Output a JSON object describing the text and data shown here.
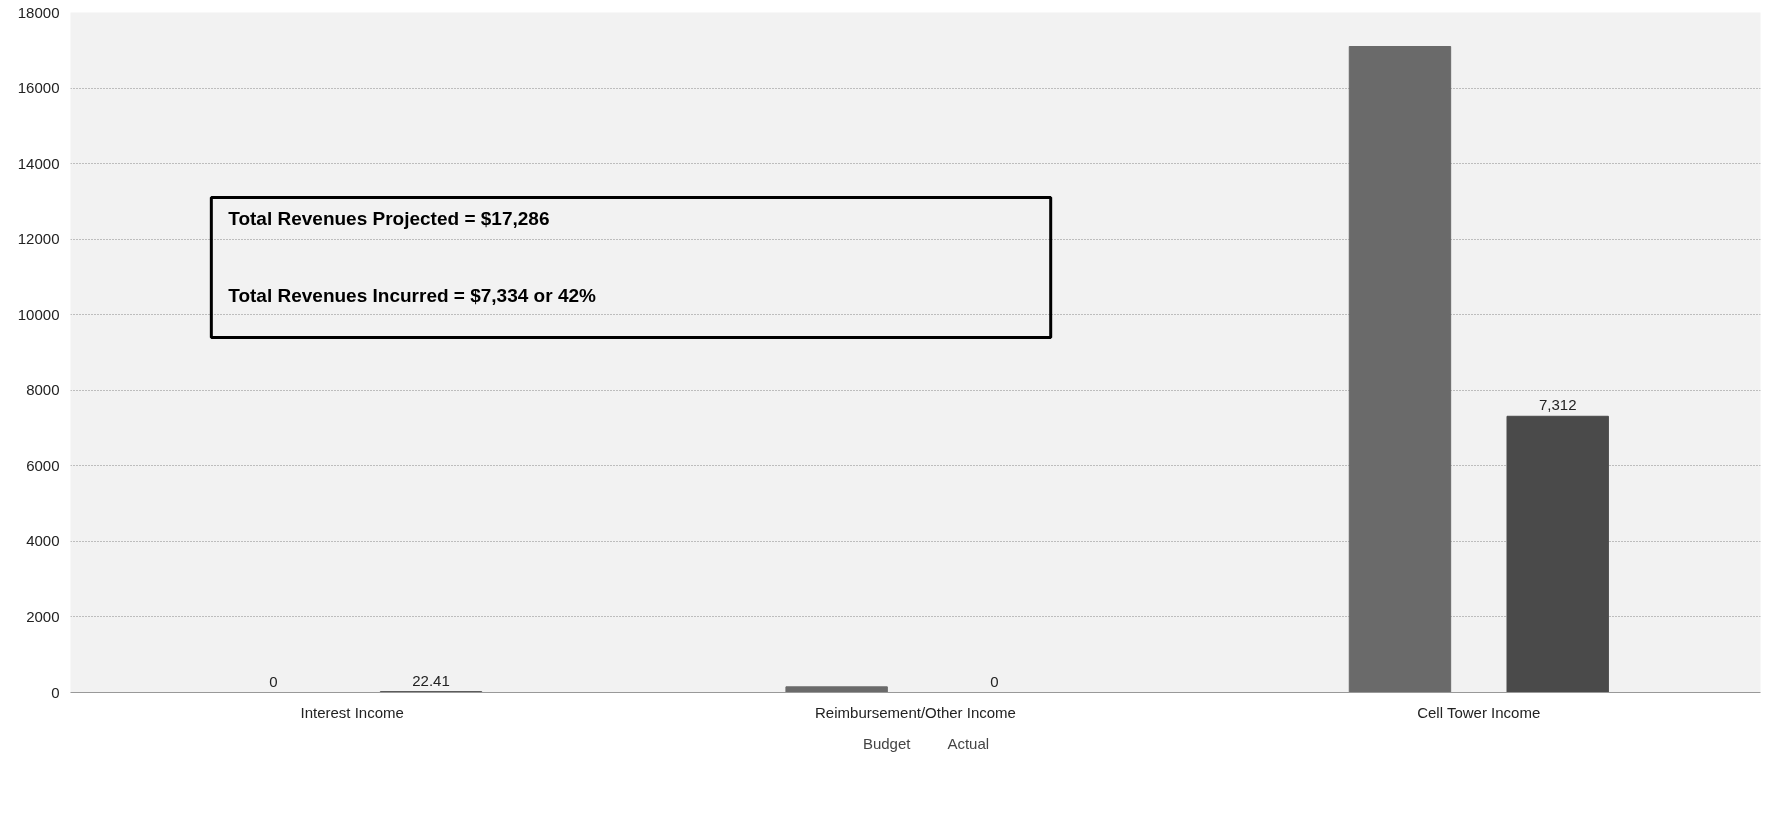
{
  "chart_data": {
    "type": "bar",
    "categories": [
      "Interest Income",
      "Reimbursement/Other Income",
      "Cell Tower Income"
    ],
    "series": [
      {
        "name": "Budget",
        "color": "#6a6a6a",
        "values": [
          0,
          150,
          17100
        ],
        "value_labels": [
          "0",
          null,
          null
        ]
      },
      {
        "name": "Actual",
        "color": "#4a4a4a",
        "values": [
          22.41,
          0,
          7312
        ],
        "value_labels": [
          "22.41",
          "0",
          "7,312"
        ]
      }
    ],
    "ylim": [
      0,
      18000
    ],
    "yticks": [
      0,
      2000,
      4000,
      6000,
      8000,
      10000,
      12000,
      14000,
      16000,
      18000
    ],
    "grid": "y",
    "legend": "bottom",
    "annotations": [
      "Total Revenues Projected = $17,286",
      "Total Revenues Incurred = $7,334 or 42%"
    ]
  }
}
